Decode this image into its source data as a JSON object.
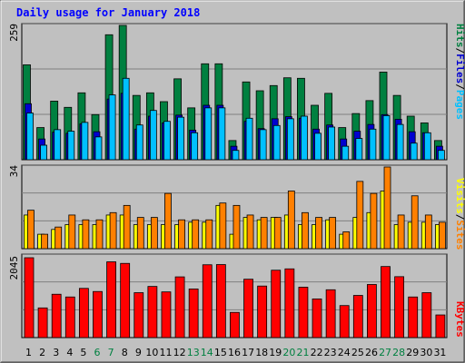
{
  "title": "Daily usage for January 2018",
  "colors": {
    "hits": "#008040",
    "files": "#0000d0",
    "pages": "#00c0ff",
    "visits": "#ff8000",
    "sites": "#ffff00",
    "kbytes": "#ff0000",
    "weekday_label": "#000000",
    "weekend_label": "#008040"
  },
  "legend": {
    "hits": "Hits",
    "files": "Files",
    "pages": "Pages",
    "sep": "/",
    "visits": "Visits",
    "sites": "Sites",
    "kbytes": "KBytes"
  },
  "chart_data": [
    {
      "type": "bar",
      "categories": [
        "1",
        "2",
        "3",
        "4",
        "5",
        "6",
        "7",
        "8",
        "9",
        "10",
        "11",
        "12",
        "13",
        "14",
        "15",
        "16",
        "17",
        "18",
        "19",
        "20",
        "21",
        "22",
        "23",
        "24",
        "25",
        "26",
        "27",
        "28",
        "29",
        "30",
        "31"
      ],
      "weekend_days": [
        "6",
        "7",
        "13",
        "14",
        "20",
        "21",
        "27",
        "28"
      ],
      "ymax_label": "259",
      "ylim": [
        0,
        259
      ],
      "series": [
        {
          "name": "Hits",
          "values": [
            183,
            62,
            113,
            101,
            129,
            87,
            241,
            259,
            124,
            129,
            112,
            156,
            100,
            185,
            185,
            37,
            150,
            133,
            143,
            158,
            157,
            105,
            128,
            62,
            89,
            114,
            169,
            124,
            84,
            71,
            37
          ]
        },
        {
          "name": "Files",
          "values": [
            108,
            40,
            53,
            51,
            69,
            54,
            117,
            128,
            59,
            84,
            71,
            86,
            57,
            105,
            105,
            26,
            74,
            60,
            79,
            83,
            80,
            59,
            67,
            40,
            55,
            68,
            87,
            78,
            54,
            52,
            26
          ]
        },
        {
          "name": "Pages",
          "values": [
            90,
            28,
            58,
            55,
            72,
            44,
            125,
            157,
            67,
            95,
            74,
            82,
            52,
            100,
            100,
            18,
            80,
            58,
            66,
            79,
            84,
            51,
            63,
            26,
            41,
            59,
            85,
            68,
            32,
            52,
            18
          ]
        }
      ]
    },
    {
      "type": "bar",
      "categories": [
        "1",
        "2",
        "3",
        "4",
        "5",
        "6",
        "7",
        "8",
        "9",
        "10",
        "11",
        "12",
        "13",
        "14",
        "15",
        "16",
        "17",
        "18",
        "19",
        "20",
        "21",
        "22",
        "23",
        "24",
        "25",
        "26",
        "27",
        "28",
        "29",
        "30",
        "31"
      ],
      "ymax_label": "34",
      "ylim": [
        0,
        34
      ],
      "series": [
        {
          "name": "Sites",
          "values": [
            14,
            6,
            8,
            10,
            10,
            10,
            14,
            14,
            10,
            10,
            10,
            10,
            11,
            11,
            18,
            6,
            13,
            12,
            13,
            14,
            10,
            10,
            12,
            6,
            13,
            15,
            24,
            10,
            11,
            11,
            10
          ]
        },
        {
          "name": "Visits",
          "values": [
            16,
            6,
            9,
            14,
            12,
            12,
            15,
            18,
            13,
            13,
            23,
            12,
            12,
            12,
            19,
            18,
            14,
            13,
            13,
            24,
            15,
            13,
            13,
            7,
            28,
            23,
            34,
            14,
            22,
            14,
            11
          ]
        }
      ]
    },
    {
      "type": "bar",
      "categories": [
        "1",
        "2",
        "3",
        "4",
        "5",
        "6",
        "7",
        "8",
        "9",
        "10",
        "11",
        "12",
        "13",
        "14",
        "15",
        "16",
        "17",
        "18",
        "19",
        "20",
        "21",
        "22",
        "23",
        "24",
        "25",
        "26",
        "27",
        "28",
        "29",
        "30",
        "31"
      ],
      "ymax_label": "2045",
      "ylim": [
        0,
        2045
      ],
      "series": [
        {
          "name": "KBytes",
          "values": [
            2045,
            760,
            1110,
            1040,
            1260,
            1180,
            1940,
            1900,
            1150,
            1310,
            1170,
            1555,
            1245,
            1865,
            1870,
            645,
            1495,
            1320,
            1725,
            1760,
            1290,
            990,
            1225,
            820,
            1080,
            1360,
            1820,
            1560,
            1040,
            1150,
            580
          ]
        }
      ]
    }
  ]
}
